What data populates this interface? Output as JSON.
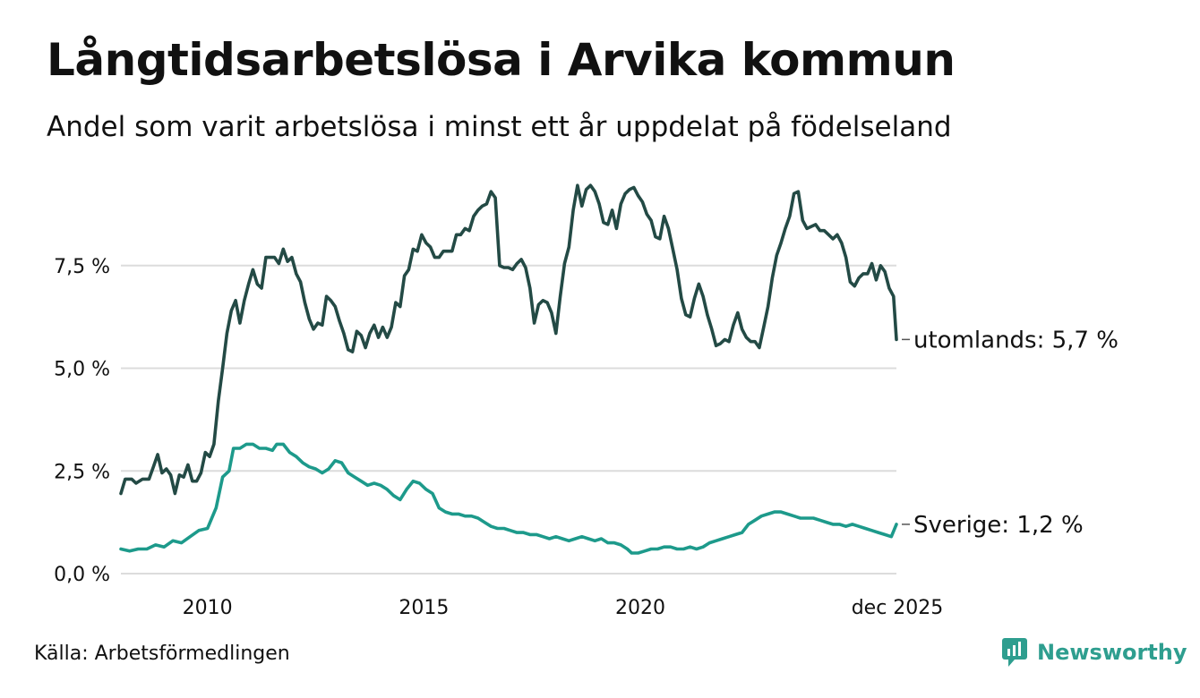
{
  "title": "Långtidsarbetslösa i Arvika kommun",
  "subtitle": "Andel som varit arbetslösa i minst ett år uppdelat på födelseland",
  "source": "Källa: Arbetsförmedlingen",
  "brand": "Newsworthy",
  "colors": {
    "utomlands": "#234a45",
    "sverige": "#1d9a8b",
    "grid": "#dcdcdc",
    "brand": "#2e9e8f"
  },
  "chart_data": {
    "type": "line",
    "title": "Långtidsarbetslösa i Arvika kommun",
    "xlabel": "",
    "ylabel": "",
    "ylim": [
      0,
      10
    ],
    "xlim": [
      2008.0,
      2025.917
    ],
    "y_ticks": [
      0,
      2.5,
      5,
      7.5
    ],
    "y_tick_labels": [
      "0,0 %",
      "2,5 %",
      "5,0 %",
      "7,5 %"
    ],
    "x_ticks": [
      2010,
      2015,
      2020,
      2025.917
    ],
    "x_tick_labels": [
      "2010",
      "2015",
      "2020",
      "dec 2025"
    ],
    "grid": true,
    "series": [
      {
        "name": "utomlands",
        "label": "utomlands: 5,7 %",
        "points": [
          [
            2008.0,
            1.95
          ],
          [
            2008.1,
            2.3
          ],
          [
            2008.25,
            2.3
          ],
          [
            2008.35,
            2.2
          ],
          [
            2008.5,
            2.3
          ],
          [
            2008.65,
            2.3
          ],
          [
            2008.75,
            2.6
          ],
          [
            2008.85,
            2.9
          ],
          [
            2008.95,
            2.45
          ],
          [
            2009.05,
            2.55
          ],
          [
            2009.15,
            2.4
          ],
          [
            2009.25,
            1.95
          ],
          [
            2009.35,
            2.4
          ],
          [
            2009.45,
            2.35
          ],
          [
            2009.55,
            2.65
          ],
          [
            2009.65,
            2.25
          ],
          [
            2009.75,
            2.25
          ],
          [
            2009.85,
            2.45
          ],
          [
            2009.95,
            2.95
          ],
          [
            2010.05,
            2.85
          ],
          [
            2010.15,
            3.15
          ],
          [
            2010.25,
            4.2
          ],
          [
            2010.35,
            5.0
          ],
          [
            2010.45,
            5.85
          ],
          [
            2010.55,
            6.4
          ],
          [
            2010.65,
            6.65
          ],
          [
            2010.75,
            6.1
          ],
          [
            2010.85,
            6.65
          ],
          [
            2010.95,
            7.05
          ],
          [
            2011.05,
            7.4
          ],
          [
            2011.15,
            7.05
          ],
          [
            2011.25,
            6.95
          ],
          [
            2011.35,
            7.7
          ],
          [
            2011.45,
            7.7
          ],
          [
            2011.55,
            7.7
          ],
          [
            2011.65,
            7.55
          ],
          [
            2011.75,
            7.9
          ],
          [
            2011.85,
            7.6
          ],
          [
            2011.95,
            7.7
          ],
          [
            2012.05,
            7.3
          ],
          [
            2012.15,
            7.1
          ],
          [
            2012.25,
            6.6
          ],
          [
            2012.35,
            6.2
          ],
          [
            2012.45,
            5.95
          ],
          [
            2012.55,
            6.1
          ],
          [
            2012.65,
            6.05
          ],
          [
            2012.75,
            6.75
          ],
          [
            2012.85,
            6.65
          ],
          [
            2012.95,
            6.5
          ],
          [
            2013.05,
            6.15
          ],
          [
            2013.15,
            5.85
          ],
          [
            2013.25,
            5.45
          ],
          [
            2013.35,
            5.4
          ],
          [
            2013.45,
            5.9
          ],
          [
            2013.55,
            5.8
          ],
          [
            2013.65,
            5.5
          ],
          [
            2013.75,
            5.85
          ],
          [
            2013.85,
            6.05
          ],
          [
            2013.95,
            5.75
          ],
          [
            2014.05,
            6.0
          ],
          [
            2014.15,
            5.75
          ],
          [
            2014.25,
            6.0
          ],
          [
            2014.35,
            6.6
          ],
          [
            2014.45,
            6.5
          ],
          [
            2014.55,
            7.25
          ],
          [
            2014.65,
            7.4
          ],
          [
            2014.75,
            7.9
          ],
          [
            2014.85,
            7.85
          ],
          [
            2014.95,
            8.25
          ],
          [
            2015.05,
            8.05
          ],
          [
            2015.15,
            7.95
          ],
          [
            2015.25,
            7.7
          ],
          [
            2015.35,
            7.7
          ],
          [
            2015.45,
            7.85
          ],
          [
            2015.55,
            7.85
          ],
          [
            2015.65,
            7.85
          ],
          [
            2015.75,
            8.25
          ],
          [
            2015.85,
            8.25
          ],
          [
            2015.95,
            8.4
          ],
          [
            2016.05,
            8.35
          ],
          [
            2016.15,
            8.7
          ],
          [
            2016.25,
            8.85
          ],
          [
            2016.35,
            8.95
          ],
          [
            2016.45,
            9.0
          ],
          [
            2016.55,
            9.3
          ],
          [
            2016.65,
            9.15
          ],
          [
            2016.75,
            7.5
          ],
          [
            2016.85,
            7.45
          ],
          [
            2016.95,
            7.45
          ],
          [
            2017.05,
            7.4
          ],
          [
            2017.15,
            7.55
          ],
          [
            2017.25,
            7.65
          ],
          [
            2017.35,
            7.45
          ],
          [
            2017.45,
            6.95
          ],
          [
            2017.55,
            6.1
          ],
          [
            2017.65,
            6.55
          ],
          [
            2017.75,
            6.65
          ],
          [
            2017.85,
            6.6
          ],
          [
            2017.95,
            6.35
          ],
          [
            2018.05,
            5.85
          ],
          [
            2018.15,
            6.75
          ],
          [
            2018.25,
            7.55
          ],
          [
            2018.35,
            7.95
          ],
          [
            2018.45,
            8.85
          ],
          [
            2018.55,
            9.45
          ],
          [
            2018.65,
            8.95
          ],
          [
            2018.75,
            9.35
          ],
          [
            2018.85,
            9.45
          ],
          [
            2018.95,
            9.3
          ],
          [
            2019.05,
            9.0
          ],
          [
            2019.15,
            8.55
          ],
          [
            2019.25,
            8.5
          ],
          [
            2019.35,
            8.85
          ],
          [
            2019.45,
            8.4
          ],
          [
            2019.55,
            9.0
          ],
          [
            2019.65,
            9.25
          ],
          [
            2019.75,
            9.35
          ],
          [
            2019.85,
            9.4
          ],
          [
            2019.95,
            9.2
          ],
          [
            2020.05,
            9.05
          ],
          [
            2020.15,
            8.75
          ],
          [
            2020.25,
            8.6
          ],
          [
            2020.35,
            8.2
          ],
          [
            2020.45,
            8.15
          ],
          [
            2020.55,
            8.7
          ],
          [
            2020.65,
            8.4
          ],
          [
            2020.75,
            7.9
          ],
          [
            2020.85,
            7.4
          ],
          [
            2020.95,
            6.7
          ],
          [
            2021.05,
            6.3
          ],
          [
            2021.15,
            6.25
          ],
          [
            2021.25,
            6.7
          ],
          [
            2021.35,
            7.05
          ],
          [
            2021.45,
            6.75
          ],
          [
            2021.55,
            6.3
          ],
          [
            2021.65,
            5.95
          ],
          [
            2021.75,
            5.55
          ],
          [
            2021.85,
            5.6
          ],
          [
            2021.95,
            5.7
          ],
          [
            2022.05,
            5.65
          ],
          [
            2022.15,
            6.05
          ],
          [
            2022.25,
            6.35
          ],
          [
            2022.35,
            5.95
          ],
          [
            2022.45,
            5.75
          ],
          [
            2022.55,
            5.65
          ],
          [
            2022.65,
            5.65
          ],
          [
            2022.75,
            5.5
          ],
          [
            2022.85,
            6.0
          ],
          [
            2022.95,
            6.5
          ],
          [
            2023.05,
            7.2
          ],
          [
            2023.15,
            7.75
          ],
          [
            2023.25,
            8.05
          ],
          [
            2023.35,
            8.4
          ],
          [
            2023.45,
            8.7
          ],
          [
            2023.55,
            9.25
          ],
          [
            2023.65,
            9.3
          ],
          [
            2023.75,
            8.6
          ],
          [
            2023.85,
            8.4
          ],
          [
            2023.95,
            8.45
          ],
          [
            2024.05,
            8.5
          ],
          [
            2024.15,
            8.35
          ],
          [
            2024.25,
            8.35
          ],
          [
            2024.35,
            8.25
          ],
          [
            2024.45,
            8.15
          ],
          [
            2024.55,
            8.25
          ],
          [
            2024.65,
            8.05
          ],
          [
            2024.75,
            7.7
          ],
          [
            2024.85,
            7.1
          ],
          [
            2024.95,
            7.0
          ],
          [
            2025.05,
            7.2
          ],
          [
            2025.15,
            7.3
          ],
          [
            2025.25,
            7.3
          ],
          [
            2025.35,
            7.55
          ],
          [
            2025.45,
            7.15
          ],
          [
            2025.55,
            7.5
          ],
          [
            2025.65,
            7.35
          ],
          [
            2025.75,
            6.95
          ],
          [
            2025.85,
            6.75
          ],
          [
            2025.917,
            5.7
          ]
        ]
      },
      {
        "name": "Sverige",
        "label": "Sverige: 1,2 %",
        "points": [
          [
            2008.0,
            0.6
          ],
          [
            2008.2,
            0.55
          ],
          [
            2008.4,
            0.6
          ],
          [
            2008.6,
            0.6
          ],
          [
            2008.8,
            0.7
          ],
          [
            2009.0,
            0.65
          ],
          [
            2009.2,
            0.8
          ],
          [
            2009.4,
            0.75
          ],
          [
            2009.6,
            0.9
          ],
          [
            2009.8,
            1.05
          ],
          [
            2010.0,
            1.1
          ],
          [
            2010.2,
            1.6
          ],
          [
            2010.35,
            2.35
          ],
          [
            2010.5,
            2.5
          ],
          [
            2010.6,
            3.05
          ],
          [
            2010.75,
            3.05
          ],
          [
            2010.9,
            3.15
          ],
          [
            2011.05,
            3.15
          ],
          [
            2011.2,
            3.05
          ],
          [
            2011.35,
            3.05
          ],
          [
            2011.5,
            3.0
          ],
          [
            2011.6,
            3.15
          ],
          [
            2011.75,
            3.15
          ],
          [
            2011.9,
            2.95
          ],
          [
            2012.05,
            2.85
          ],
          [
            2012.2,
            2.7
          ],
          [
            2012.35,
            2.6
          ],
          [
            2012.5,
            2.55
          ],
          [
            2012.65,
            2.45
          ],
          [
            2012.8,
            2.55
          ],
          [
            2012.95,
            2.75
          ],
          [
            2013.1,
            2.7
          ],
          [
            2013.25,
            2.45
          ],
          [
            2013.4,
            2.35
          ],
          [
            2013.55,
            2.25
          ],
          [
            2013.7,
            2.15
          ],
          [
            2013.85,
            2.2
          ],
          [
            2014.0,
            2.15
          ],
          [
            2014.15,
            2.05
          ],
          [
            2014.3,
            1.9
          ],
          [
            2014.45,
            1.8
          ],
          [
            2014.6,
            2.05
          ],
          [
            2014.75,
            2.25
          ],
          [
            2014.9,
            2.2
          ],
          [
            2015.05,
            2.05
          ],
          [
            2015.2,
            1.95
          ],
          [
            2015.35,
            1.6
          ],
          [
            2015.5,
            1.5
          ],
          [
            2015.65,
            1.45
          ],
          [
            2015.8,
            1.45
          ],
          [
            2015.95,
            1.4
          ],
          [
            2016.1,
            1.4
          ],
          [
            2016.25,
            1.35
          ],
          [
            2016.4,
            1.25
          ],
          [
            2016.55,
            1.15
          ],
          [
            2016.7,
            1.1
          ],
          [
            2016.85,
            1.1
          ],
          [
            2017.0,
            1.05
          ],
          [
            2017.15,
            1.0
          ],
          [
            2017.3,
            1.0
          ],
          [
            2017.45,
            0.95
          ],
          [
            2017.6,
            0.95
          ],
          [
            2017.75,
            0.9
          ],
          [
            2017.9,
            0.85
          ],
          [
            2018.05,
            0.9
          ],
          [
            2018.2,
            0.85
          ],
          [
            2018.35,
            0.8
          ],
          [
            2018.5,
            0.85
          ],
          [
            2018.65,
            0.9
          ],
          [
            2018.8,
            0.85
          ],
          [
            2018.95,
            0.8
          ],
          [
            2019.1,
            0.85
          ],
          [
            2019.25,
            0.75
          ],
          [
            2019.4,
            0.75
          ],
          [
            2019.55,
            0.7
          ],
          [
            2019.7,
            0.6
          ],
          [
            2019.8,
            0.5
          ],
          [
            2019.95,
            0.5
          ],
          [
            2020.1,
            0.55
          ],
          [
            2020.25,
            0.6
          ],
          [
            2020.4,
            0.6
          ],
          [
            2020.55,
            0.65
          ],
          [
            2020.7,
            0.65
          ],
          [
            2020.85,
            0.6
          ],
          [
            2021.0,
            0.6
          ],
          [
            2021.15,
            0.65
          ],
          [
            2021.3,
            0.6
          ],
          [
            2021.45,
            0.65
          ],
          [
            2021.6,
            0.75
          ],
          [
            2021.75,
            0.8
          ],
          [
            2021.9,
            0.85
          ],
          [
            2022.05,
            0.9
          ],
          [
            2022.2,
            0.95
          ],
          [
            2022.35,
            1.0
          ],
          [
            2022.5,
            1.2
          ],
          [
            2022.65,
            1.3
          ],
          [
            2022.8,
            1.4
          ],
          [
            2022.95,
            1.45
          ],
          [
            2023.1,
            1.5
          ],
          [
            2023.25,
            1.5
          ],
          [
            2023.4,
            1.45
          ],
          [
            2023.55,
            1.4
          ],
          [
            2023.7,
            1.35
          ],
          [
            2023.85,
            1.35
          ],
          [
            2024.0,
            1.35
          ],
          [
            2024.15,
            1.3
          ],
          [
            2024.3,
            1.25
          ],
          [
            2024.45,
            1.2
          ],
          [
            2024.6,
            1.2
          ],
          [
            2024.75,
            1.15
          ],
          [
            2024.9,
            1.2
          ],
          [
            2025.05,
            1.15
          ],
          [
            2025.2,
            1.1
          ],
          [
            2025.35,
            1.05
          ],
          [
            2025.5,
            1.0
          ],
          [
            2025.65,
            0.95
          ],
          [
            2025.8,
            0.9
          ],
          [
            2025.917,
            1.2
          ]
        ]
      }
    ]
  }
}
